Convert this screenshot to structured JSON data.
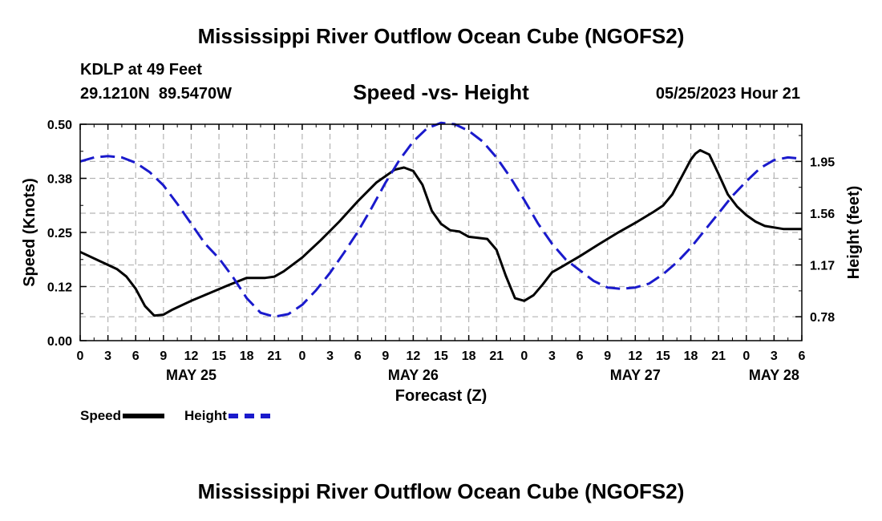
{
  "header": {
    "title": "Mississippi River Outflow Ocean Cube (NGOFS2)",
    "station": "KDLP at 49 Feet",
    "coords": "29.1210N  89.5470W",
    "subtitle": "Speed -vs- Height",
    "datetime": "05/25/2023 Hour 21"
  },
  "footer": {
    "title": "Mississippi River Outflow Ocean Cube (NGOFS2)"
  },
  "legend": {
    "speed_label": "Speed",
    "height_label": "Height"
  },
  "chart_data": {
    "type": "line",
    "xlabel": "Forecast (Z)",
    "ylabel": "Speed (Knots)",
    "y2label": "Height (feet)",
    "xlim": [
      0,
      78
    ],
    "ylim": [
      0,
      0.5
    ],
    "y2lim": [
      0.6,
      2.23
    ],
    "x_ticks": [
      0,
      3,
      6,
      9,
      12,
      15,
      18,
      21,
      24,
      27,
      30,
      33,
      36,
      39,
      42,
      45,
      48,
      51,
      54,
      57,
      60,
      63,
      66,
      69,
      72,
      75,
      78
    ],
    "x_tick_labels": [
      "0",
      "3",
      "6",
      "9",
      "12",
      "15",
      "18",
      "21",
      "0",
      "3",
      "6",
      "9",
      "12",
      "15",
      "18",
      "21",
      "0",
      "3",
      "6",
      "9",
      "12",
      "15",
      "18",
      "21",
      "0",
      "3",
      "6"
    ],
    "day_labels": [
      {
        "label": "MAY 25",
        "x": 12
      },
      {
        "label": "MAY 26",
        "x": 36
      },
      {
        "label": "MAY 27",
        "x": 60
      },
      {
        "label": "MAY 28",
        "x": 75
      }
    ],
    "y_ticks": [
      0.0,
      0.125,
      0.25,
      0.375,
      0.5
    ],
    "y_tick_labels": [
      "0.00",
      "0.12",
      "0.25",
      "0.38",
      "0.50"
    ],
    "y2_ticks": [
      0.78,
      1.17,
      1.56,
      1.95
    ],
    "y2_tick_labels": [
      "0.78",
      "1.17",
      "1.56",
      "1.95"
    ],
    "grid": true,
    "series": [
      {
        "name": "Speed",
        "axis": "left",
        "color": "#000000",
        "style": "solid",
        "x": [
          0,
          2,
          4,
          5,
          6,
          7,
          8,
          9,
          10,
          12,
          14,
          16,
          18,
          20,
          21,
          22,
          24,
          26,
          28,
          30,
          32,
          34,
          35,
          36,
          37,
          38,
          39,
          40,
          41,
          42,
          44,
          45,
          46,
          47,
          48,
          49,
          50,
          51,
          52,
          54,
          56,
          58,
          60,
          62,
          63,
          64,
          65,
          66,
          66.5,
          67,
          68,
          69,
          70,
          71,
          72,
          73,
          74,
          76,
          78
        ],
        "y": [
          0.205,
          0.185,
          0.165,
          0.148,
          0.12,
          0.08,
          0.058,
          0.06,
          0.072,
          0.092,
          0.11,
          0.128,
          0.145,
          0.145,
          0.148,
          0.16,
          0.192,
          0.232,
          0.275,
          0.322,
          0.365,
          0.395,
          0.4,
          0.392,
          0.36,
          0.3,
          0.27,
          0.255,
          0.252,
          0.24,
          0.235,
          0.21,
          0.15,
          0.098,
          0.092,
          0.105,
          0.13,
          0.158,
          0.17,
          0.195,
          0.222,
          0.248,
          0.272,
          0.298,
          0.312,
          0.338,
          0.378,
          0.418,
          0.432,
          0.44,
          0.43,
          0.385,
          0.338,
          0.31,
          0.29,
          0.275,
          0.265,
          0.258,
          0.258
        ]
      },
      {
        "name": "Height",
        "axis": "right",
        "color": "#1a1acc",
        "style": "dashed",
        "x": [
          0,
          1.5,
          3,
          4.5,
          6,
          7.5,
          9,
          10.5,
          12,
          13.5,
          15,
          16.5,
          18,
          19.5,
          21,
          22.5,
          24,
          25.5,
          27,
          28.5,
          30,
          31.5,
          33,
          34.5,
          36,
          37.5,
          39,
          40.5,
          42,
          43.5,
          45,
          46.5,
          48,
          49.5,
          51,
          52.5,
          54,
          55.5,
          57,
          58.5,
          60,
          61.5,
          63,
          64.5,
          66,
          67.5,
          69,
          70.5,
          72,
          73.5,
          75,
          76.5,
          78
        ],
        "y": [
          1.95,
          1.98,
          1.99,
          1.98,
          1.94,
          1.87,
          1.77,
          1.63,
          1.48,
          1.33,
          1.22,
          1.08,
          0.92,
          0.81,
          0.78,
          0.8,
          0.87,
          0.98,
          1.11,
          1.26,
          1.42,
          1.6,
          1.79,
          1.96,
          2.1,
          2.2,
          2.24,
          2.23,
          2.18,
          2.1,
          1.98,
          1.83,
          1.66,
          1.48,
          1.33,
          1.21,
          1.13,
          1.05,
          1.0,
          0.99,
          1.0,
          1.03,
          1.1,
          1.19,
          1.3,
          1.43,
          1.56,
          1.69,
          1.8,
          1.9,
          1.96,
          1.98,
          1.97
        ]
      }
    ]
  }
}
